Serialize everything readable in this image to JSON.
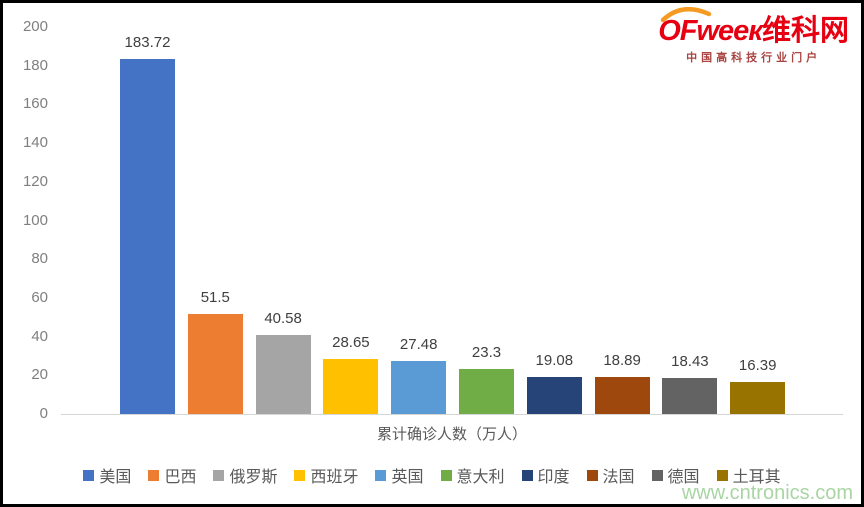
{
  "chart_data": {
    "type": "bar",
    "categories": [
      "美国",
      "巴西",
      "俄罗斯",
      "西班牙",
      "英国",
      "意大利",
      "印度",
      "法国",
      "德国",
      "土耳其"
    ],
    "values": [
      183.72,
      51.5,
      40.58,
      28.65,
      27.48,
      23.3,
      19.08,
      18.89,
      18.43,
      16.39
    ],
    "value_labels": [
      "183.72",
      "51.5",
      "40.58",
      "28.65",
      "27.48",
      "23.3",
      "19.08",
      "18.89",
      "18.43",
      "16.39"
    ],
    "colors": [
      "#4472c4",
      "#ed7d31",
      "#a5a5a5",
      "#ffc000",
      "#5b9bd5",
      "#70ad47",
      "#264478",
      "#9e480e",
      "#636363",
      "#997300"
    ],
    "title": "",
    "xlabel": "累计确诊人数（万人）",
    "ylabel": "",
    "ylim": [
      0,
      200
    ],
    "ytick_step": 20,
    "yticks": [
      "0",
      "20",
      "40",
      "60",
      "80",
      "100",
      "120",
      "140",
      "160",
      "180",
      "200"
    ],
    "grid": false,
    "legend_position": "bottom"
  },
  "logo": {
    "brand": "OFweeк",
    "brand_suffix": "维科网",
    "tagline": "中国高科技行业门户",
    "brand_color": "#e60012",
    "tagline_color": "#a94442",
    "arc_color": "#f59a23"
  },
  "watermark": {
    "text": "www.cntronics.com",
    "color": "#a9d5a4"
  }
}
